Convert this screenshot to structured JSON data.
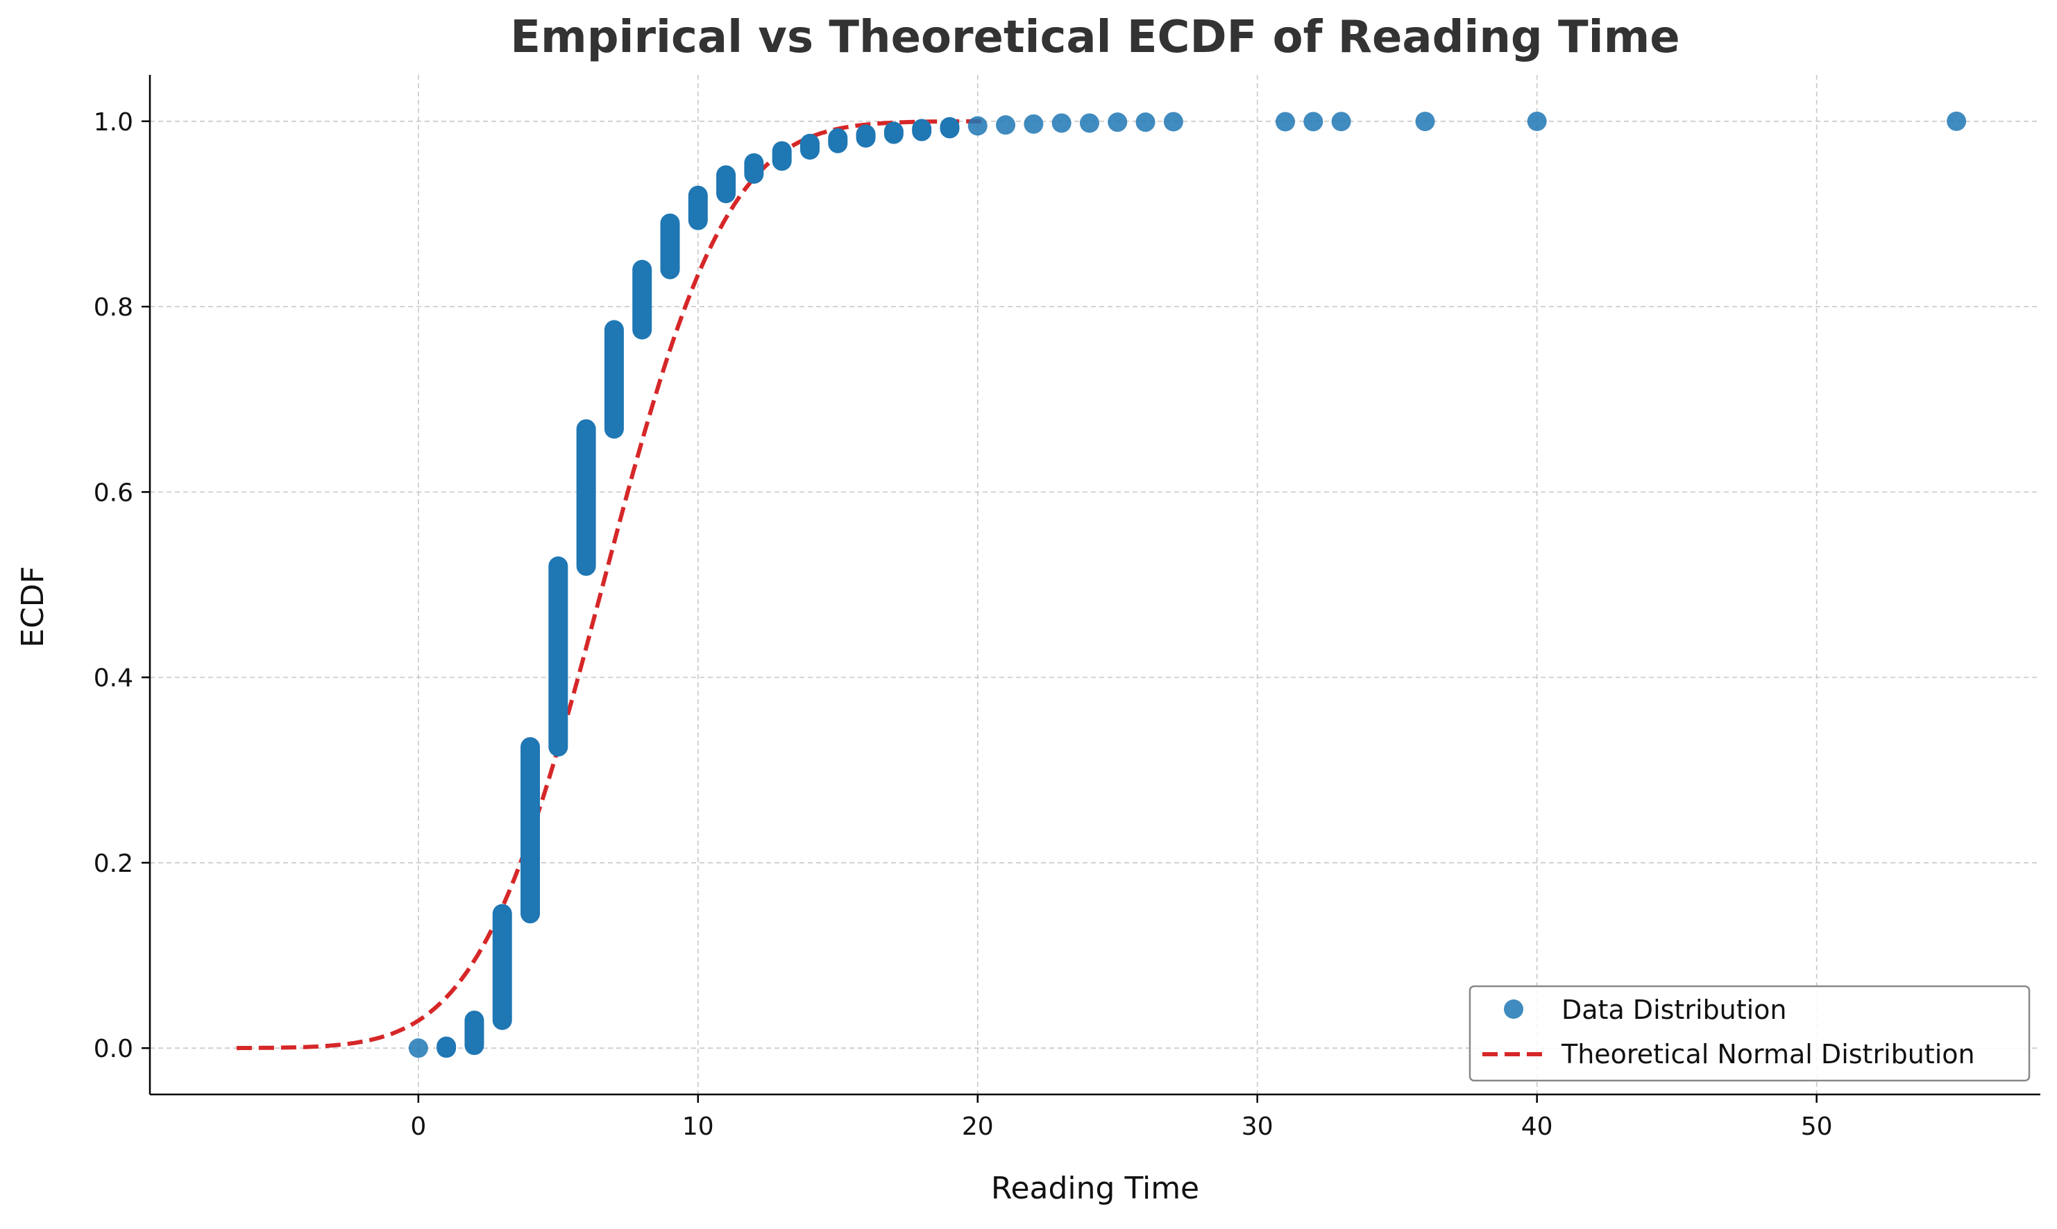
{
  "chart_data": {
    "type": "scatter",
    "title": "Empirical vs Theoretical ECDF of Reading Time",
    "xlabel": "Reading Time",
    "ylabel": "ECDF",
    "xlim": [
      -9.6,
      58.0
    ],
    "ylim": [
      -0.05,
      1.05
    ],
    "xticks": [
      0,
      10,
      20,
      30,
      40,
      50
    ],
    "yticks": [
      0.0,
      0.2,
      0.4,
      0.6,
      0.8,
      1.0
    ],
    "xtick_labels": [
      "0",
      "10",
      "20",
      "30",
      "40",
      "50"
    ],
    "ytick_labels": [
      "0.0",
      "0.2",
      "0.4",
      "0.6",
      "0.8",
      "1.0"
    ],
    "grid": true,
    "legend_position": "bottom-right",
    "colors": {
      "empirical": "#1f77b4",
      "theoretical": "#d62728",
      "grid": "#c8c8c8",
      "axis": "#000000",
      "title": "#333333"
    },
    "series": [
      {
        "name": "Data Distribution",
        "kind": "scatter",
        "segments": [
          {
            "x": 0,
            "y_min": 0.0,
            "y_max": 0.0
          },
          {
            "x": 1,
            "y_min": 0.0,
            "y_max": 0.002
          },
          {
            "x": 2,
            "y_min": 0.003,
            "y_max": 0.03
          },
          {
            "x": 3,
            "y_min": 0.03,
            "y_max": 0.145
          },
          {
            "x": 4,
            "y_min": 0.145,
            "y_max": 0.325
          },
          {
            "x": 5,
            "y_min": 0.325,
            "y_max": 0.52
          },
          {
            "x": 6,
            "y_min": 0.52,
            "y_max": 0.668
          },
          {
            "x": 7,
            "y_min": 0.668,
            "y_max": 0.775
          },
          {
            "x": 8,
            "y_min": 0.775,
            "y_max": 0.84
          },
          {
            "x": 9,
            "y_min": 0.84,
            "y_max": 0.89
          },
          {
            "x": 10,
            "y_min": 0.893,
            "y_max": 0.92
          },
          {
            "x": 11,
            "y_min": 0.922,
            "y_max": 0.942
          },
          {
            "x": 12,
            "y_min": 0.943,
            "y_max": 0.955
          },
          {
            "x": 13,
            "y_min": 0.957,
            "y_max": 0.968
          },
          {
            "x": 14,
            "y_min": 0.969,
            "y_max": 0.976
          },
          {
            "x": 15,
            "y_min": 0.976,
            "y_max": 0.982
          },
          {
            "x": 16,
            "y_min": 0.982,
            "y_max": 0.986
          },
          {
            "x": 17,
            "y_min": 0.986,
            "y_max": 0.989
          },
          {
            "x": 18,
            "y_min": 0.989,
            "y_max": 0.992
          },
          {
            "x": 19,
            "y_min": 0.992,
            "y_max": 0.994
          },
          {
            "x": 20,
            "y_min": 0.994,
            "y_max": 0.995
          },
          {
            "x": 21,
            "y_min": 0.995,
            "y_max": 0.996
          },
          {
            "x": 22,
            "y_min": 0.996,
            "y_max": 0.997
          },
          {
            "x": 23,
            "y_min": 0.997,
            "y_max": 0.998
          },
          {
            "x": 24,
            "y_min": 0.998,
            "y_max": 0.998
          },
          {
            "x": 25,
            "y_min": 0.998,
            "y_max": 0.999
          },
          {
            "x": 26,
            "y_min": 0.999,
            "y_max": 0.999
          },
          {
            "x": 27,
            "y_min": 0.999,
            "y_max": 0.9995
          },
          {
            "x": 31,
            "y_min": 0.9995,
            "y_max": 0.9995
          },
          {
            "x": 32,
            "y_min": 0.9996,
            "y_max": 0.9996
          },
          {
            "x": 33,
            "y_min": 0.9997,
            "y_max": 0.9997
          },
          {
            "x": 36,
            "y_min": 0.9998,
            "y_max": 0.9998
          },
          {
            "x": 40,
            "y_min": 0.9999,
            "y_max": 0.9999
          },
          {
            "x": 55,
            "y_min": 1.0,
            "y_max": 1.0
          }
        ]
      },
      {
        "name": "Theoretical Normal Distribution",
        "kind": "line",
        "mean": 6.6,
        "sd": 3.5,
        "x_range": [
          -6.5,
          20.3
        ]
      }
    ]
  }
}
